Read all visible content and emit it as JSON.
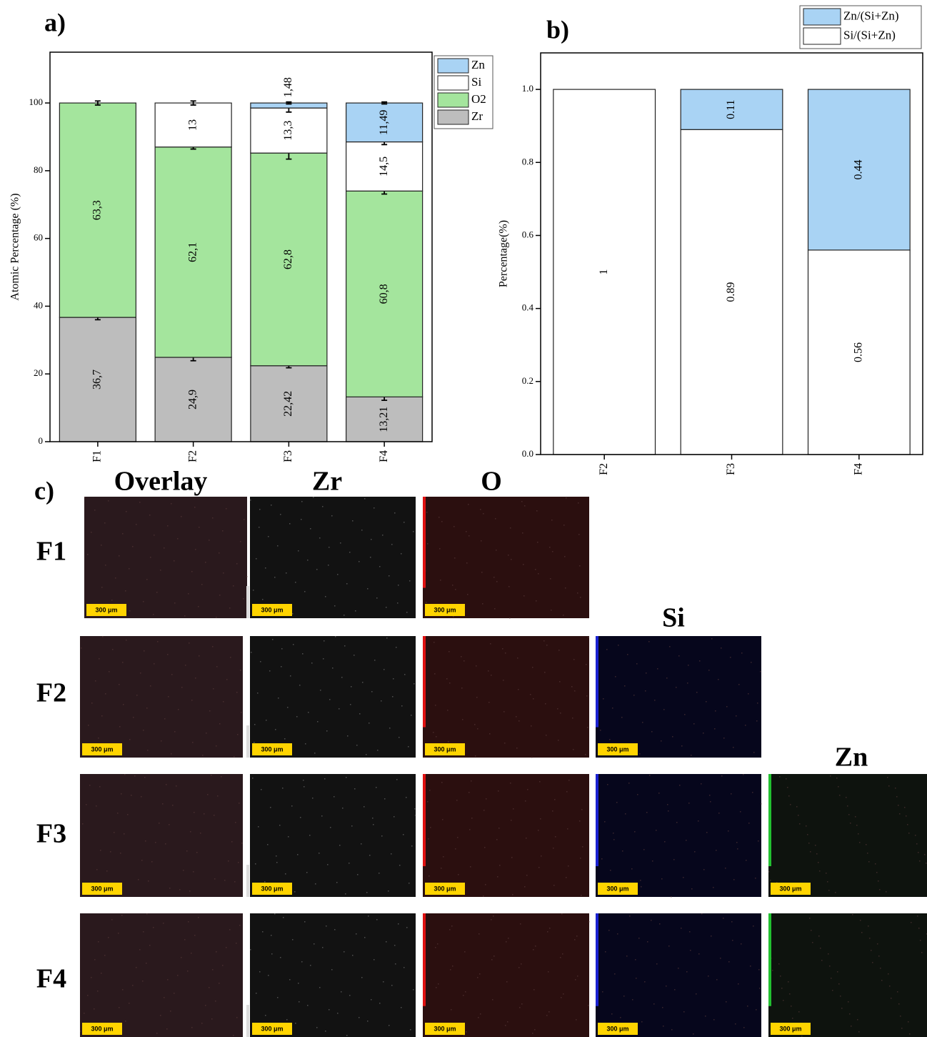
{
  "chart_data": [
    {
      "type": "bar",
      "stacked": true,
      "panel_label": "a)",
      "ylabel": "Atomic Percentage (%)",
      "categories": [
        "F1",
        "F2",
        "F3",
        "F4"
      ],
      "ylim": [
        0,
        115
      ],
      "yticks": [
        0,
        20,
        40,
        60,
        80,
        100
      ],
      "legend": "upper right outside",
      "series": [
        {
          "name": "Zr",
          "color": "#bdbdbd",
          "values": [
            36.7,
            24.9,
            22.42,
            13.21
          ],
          "value_labels": [
            "36,7",
            "24,9",
            "22,42",
            "13,21"
          ],
          "errors": [
            0.7,
            1.0,
            0.6,
            1.0
          ]
        },
        {
          "name": "O2",
          "color": "#a4e59d",
          "values": [
            63.3,
            62.1,
            62.8,
            60.8
          ],
          "value_labels": [
            "63,3",
            "62,1",
            "62,8",
            "60,8"
          ],
          "errors": [
            0.6,
            0.6,
            1.8,
            0.9
          ]
        },
        {
          "name": "Si",
          "color": "#ffffff",
          "values": [
            null,
            13,
            13.3,
            14.5
          ],
          "value_labels": [
            null,
            "13",
            "13,3",
            "14,5"
          ],
          "errors": [
            null,
            0.6,
            1.2,
            0.8
          ]
        },
        {
          "name": "Zn",
          "color": "#a9d3f4",
          "values": [
            null,
            null,
            1.48,
            11.49
          ],
          "value_labels": [
            null,
            null,
            "1,48",
            "11,49"
          ],
          "errors": [
            null,
            null,
            0.3,
            0.3
          ]
        }
      ]
    },
    {
      "type": "bar",
      "stacked": true,
      "panel_label": "b)",
      "ylabel": "Percentage(%)",
      "categories": [
        "F2",
        "F3",
        "F4"
      ],
      "ylim": [
        0,
        1.1
      ],
      "yticks": [
        {
          "value": 0,
          "label": "0.0"
        },
        0.2,
        0.4,
        0.6,
        0.8,
        {
          "value": 1,
          "label": "1.0"
        }
      ],
      "legend": "upper right outside",
      "series": [
        {
          "name": "Si/(Si+Zn)",
          "color": "#ffffff",
          "values": [
            1,
            0.89,
            0.56
          ]
        },
        {
          "name": "Zn/(Si+Zn)",
          "color": "#a9d3f4",
          "values": [
            null,
            0.11,
            0.44
          ]
        }
      ]
    }
  ],
  "panel_c": {
    "label": "c)",
    "columns": [
      "Overlay",
      "Zr",
      "O",
      "Si",
      "Zn"
    ],
    "rows": [
      "F1",
      "F2",
      "F3",
      "F4"
    ],
    "scale_bar": "300 μm"
  }
}
